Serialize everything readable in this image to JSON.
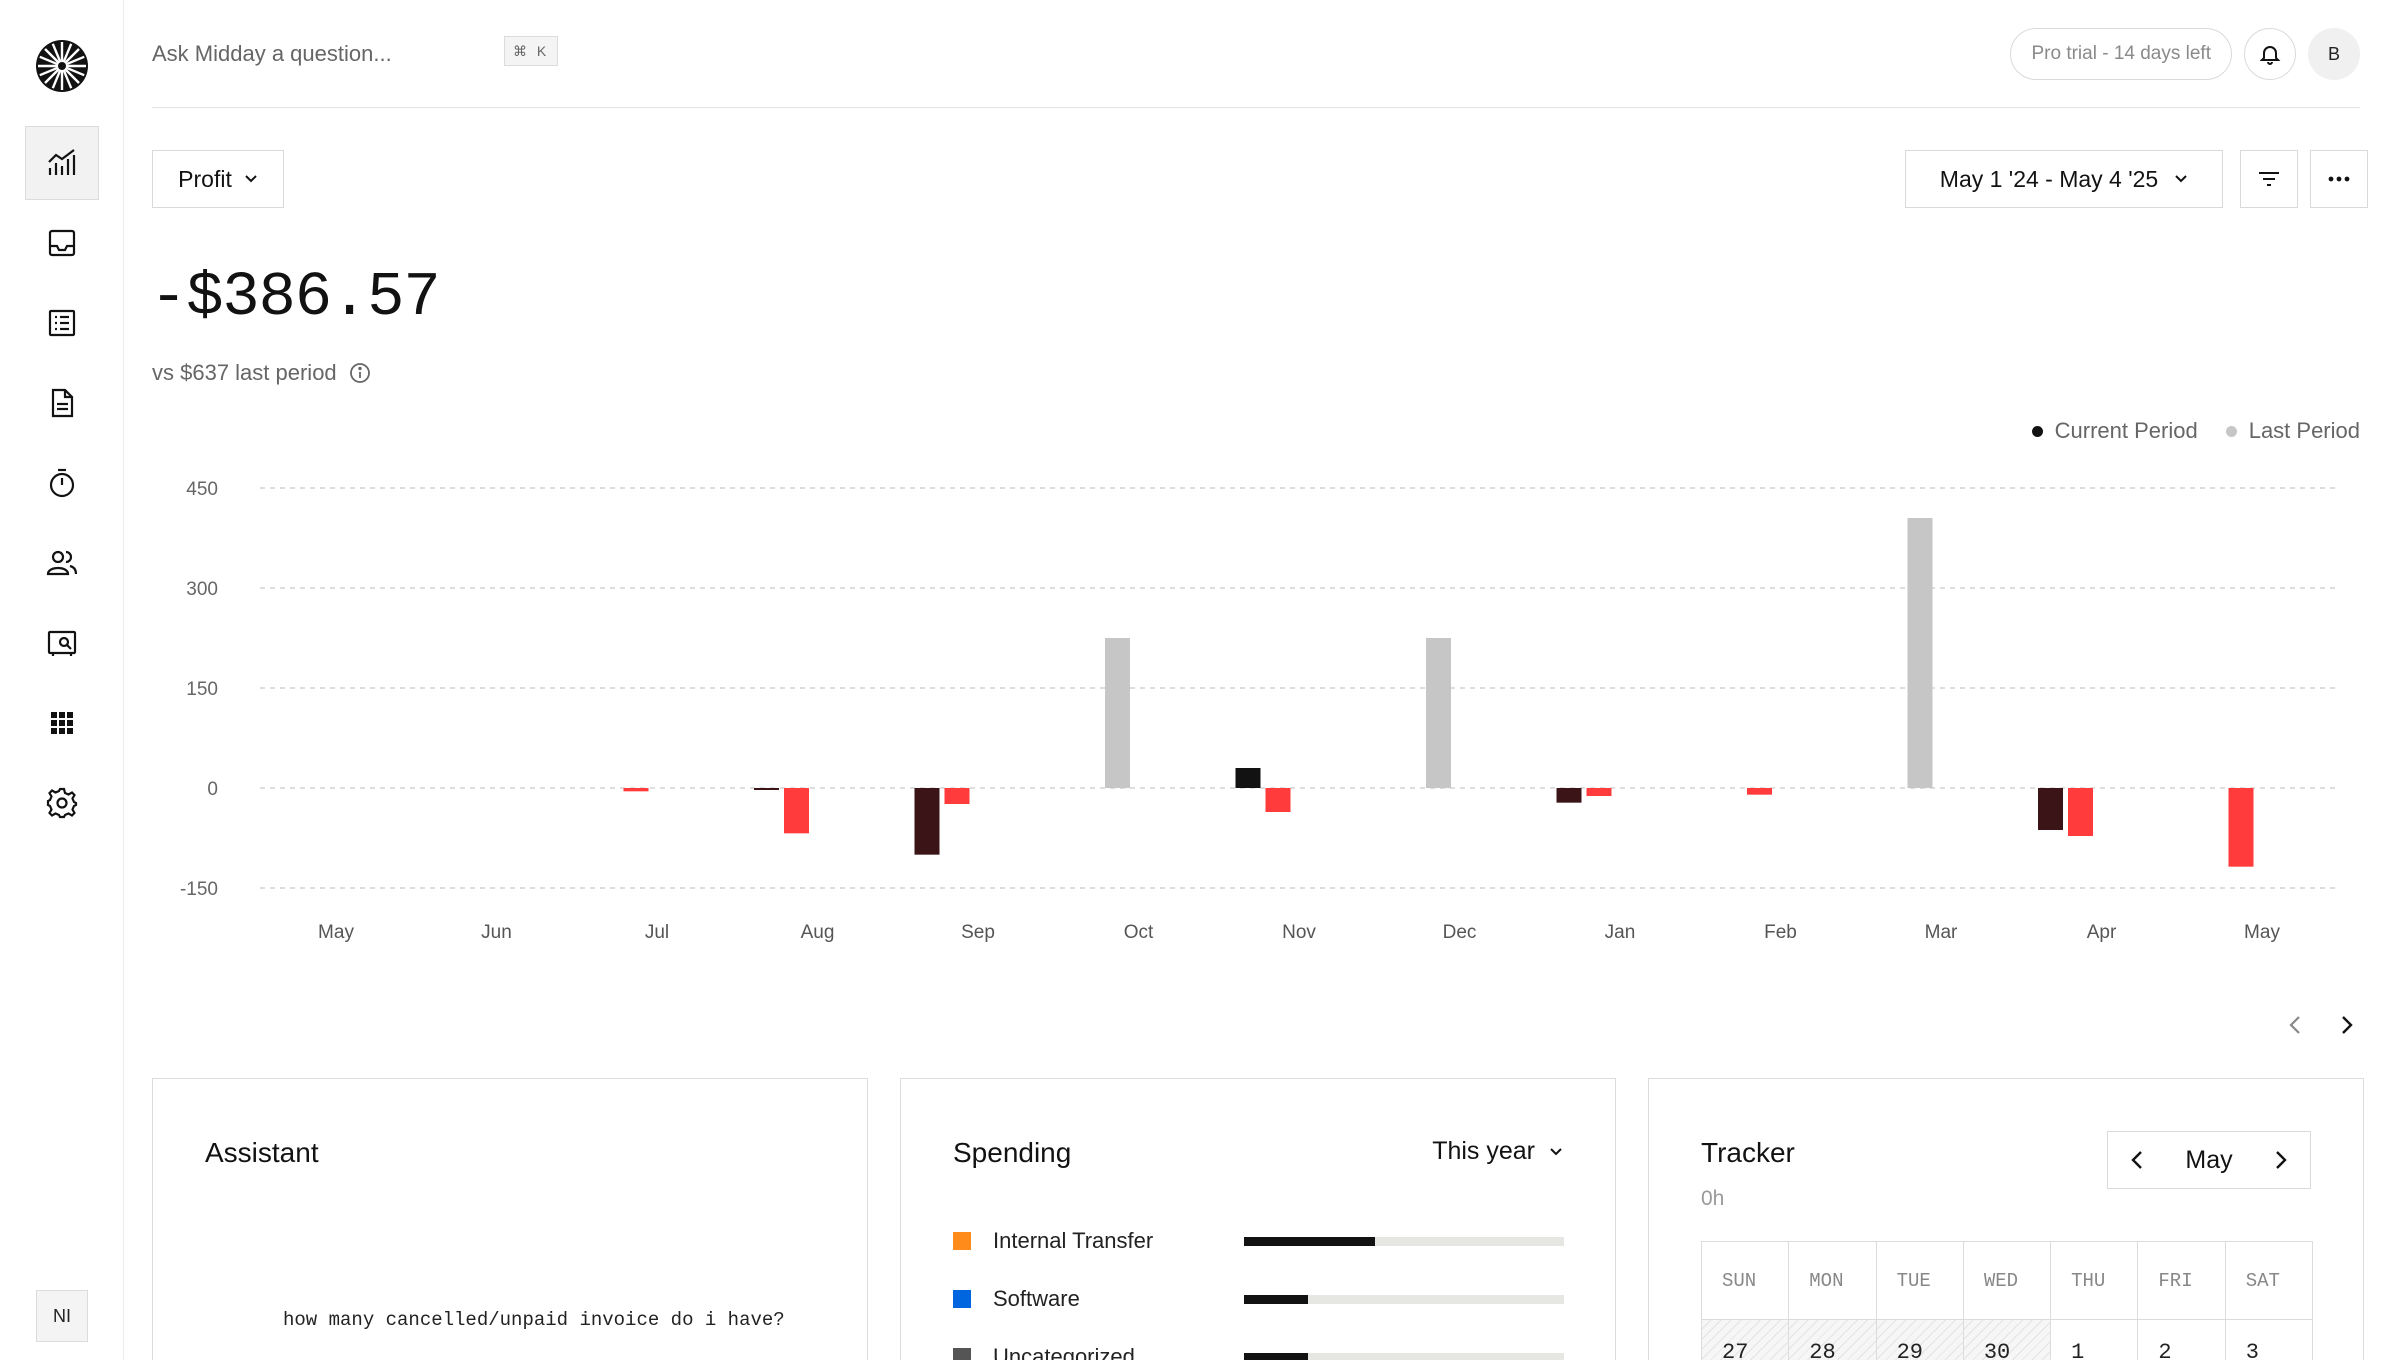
{
  "header": {
    "search_placeholder": "Ask Midday a question...",
    "shortcut": "⌘ K",
    "trial_badge": "Pro trial - 14 days left",
    "avatar_initial": "B"
  },
  "sidebar": {
    "items": [
      {
        "name": "overview",
        "icon": "chart-icon",
        "active": true
      },
      {
        "name": "inbox",
        "icon": "inbox-icon",
        "active": false
      },
      {
        "name": "transactions",
        "icon": "list-icon",
        "active": false
      },
      {
        "name": "invoices",
        "icon": "document-icon",
        "active": false
      },
      {
        "name": "tracker",
        "icon": "timer-icon",
        "active": false
      },
      {
        "name": "customers",
        "icon": "users-icon",
        "active": false
      },
      {
        "name": "vault",
        "icon": "vault-icon",
        "active": false
      },
      {
        "name": "apps",
        "icon": "grid-icon",
        "active": false
      },
      {
        "name": "settings",
        "icon": "gear-icon",
        "active": false
      }
    ],
    "user_initials": "NI"
  },
  "toolbar": {
    "metric_label": "Profit",
    "date_range": "May 1 '24 - May 4 '25"
  },
  "summary": {
    "value": "-$386.57",
    "comparison": "vs $637 last period"
  },
  "legend": {
    "current": "Current Period",
    "last": "Last Period"
  },
  "colors": {
    "current_positive": "#121212",
    "current_negative": "#3a1416",
    "last_positive": "#c6c6c6",
    "last_negative": "#ff3b3b"
  },
  "chart_data": {
    "type": "bar",
    "categories": [
      "May",
      "Jun",
      "Jul",
      "Aug",
      "Sep",
      "Oct",
      "Nov",
      "Dec",
      "Jan",
      "Feb",
      "Mar",
      "Apr",
      "May"
    ],
    "series": [
      {
        "name": "Current Period",
        "values": [
          0,
          0,
          -3,
          -100,
          0,
          30,
          0,
          -22,
          0,
          0,
          -63,
          0,
          0
        ]
      },
      {
        "name": "Last Period",
        "values": [
          0,
          -5,
          -68,
          -24,
          225,
          -36,
          225,
          -12,
          -10,
          405,
          -72,
          -118,
          -12
        ]
      }
    ],
    "ylim": [
      -150,
      450
    ],
    "yticks": [
      450,
      300,
      150,
      0,
      -150
    ],
    "grid": true
  },
  "cards": {
    "assistant": {
      "title": "Assistant",
      "message": "how many cancelled/unpaid invoice do i have?"
    },
    "spending": {
      "title": "Spending",
      "period": "This year",
      "items": [
        {
          "label": "Internal Transfer",
          "color": "#ff8c1a",
          "fraction": 0.41
        },
        {
          "label": "Software",
          "color": "#0066e0",
          "fraction": 0.2
        },
        {
          "label": "Uncategorized",
          "color": "#555555",
          "fraction": 0.2
        }
      ]
    },
    "tracker": {
      "title": "Tracker",
      "total": "0h",
      "month": "May",
      "weekdays": [
        "SUN",
        "MON",
        "TUE",
        "WED",
        "THU",
        "FRI",
        "SAT"
      ],
      "first_week": [
        "27",
        "28",
        "29",
        "30",
        "1",
        "2",
        "3"
      ]
    }
  }
}
